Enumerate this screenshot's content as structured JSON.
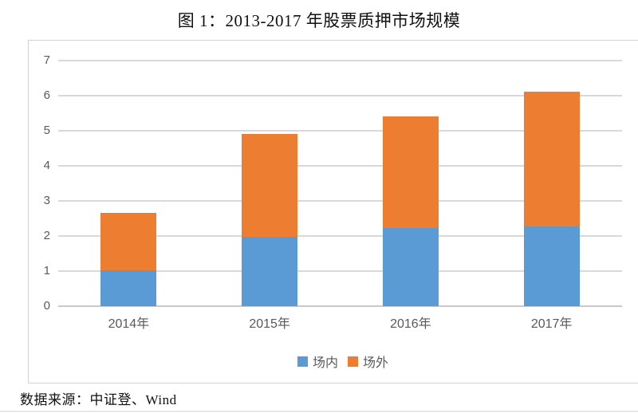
{
  "title": "图 1：2013-2017 年股票质押市场规模",
  "source_note": "数据来源：中证登、Wind",
  "chart_data": {
    "type": "bar",
    "stacked": true,
    "title": "图 1：2013-2017 年股票质押市场规模",
    "categories": [
      "2014年",
      "2015年",
      "2016年",
      "2017年"
    ],
    "series": [
      {
        "name": "场内",
        "color": "#5B9BD5",
        "values": [
          1.03,
          1.97,
          2.23,
          2.27
        ]
      },
      {
        "name": "场外",
        "color": "#ED7D31",
        "values": [
          1.64,
          2.94,
          3.19,
          3.85
        ]
      }
    ],
    "totals": [
      2.67,
      4.91,
      5.42,
      6.12
    ],
    "xlabel": "",
    "ylabel": "",
    "ylim": [
      0,
      7
    ],
    "yticks": [
      0,
      1,
      2,
      3,
      4,
      5,
      6,
      7
    ],
    "grid": true,
    "legend_position": "bottom",
    "gridline_color": "#d9d9d9",
    "axis_text_color": "#595959"
  }
}
